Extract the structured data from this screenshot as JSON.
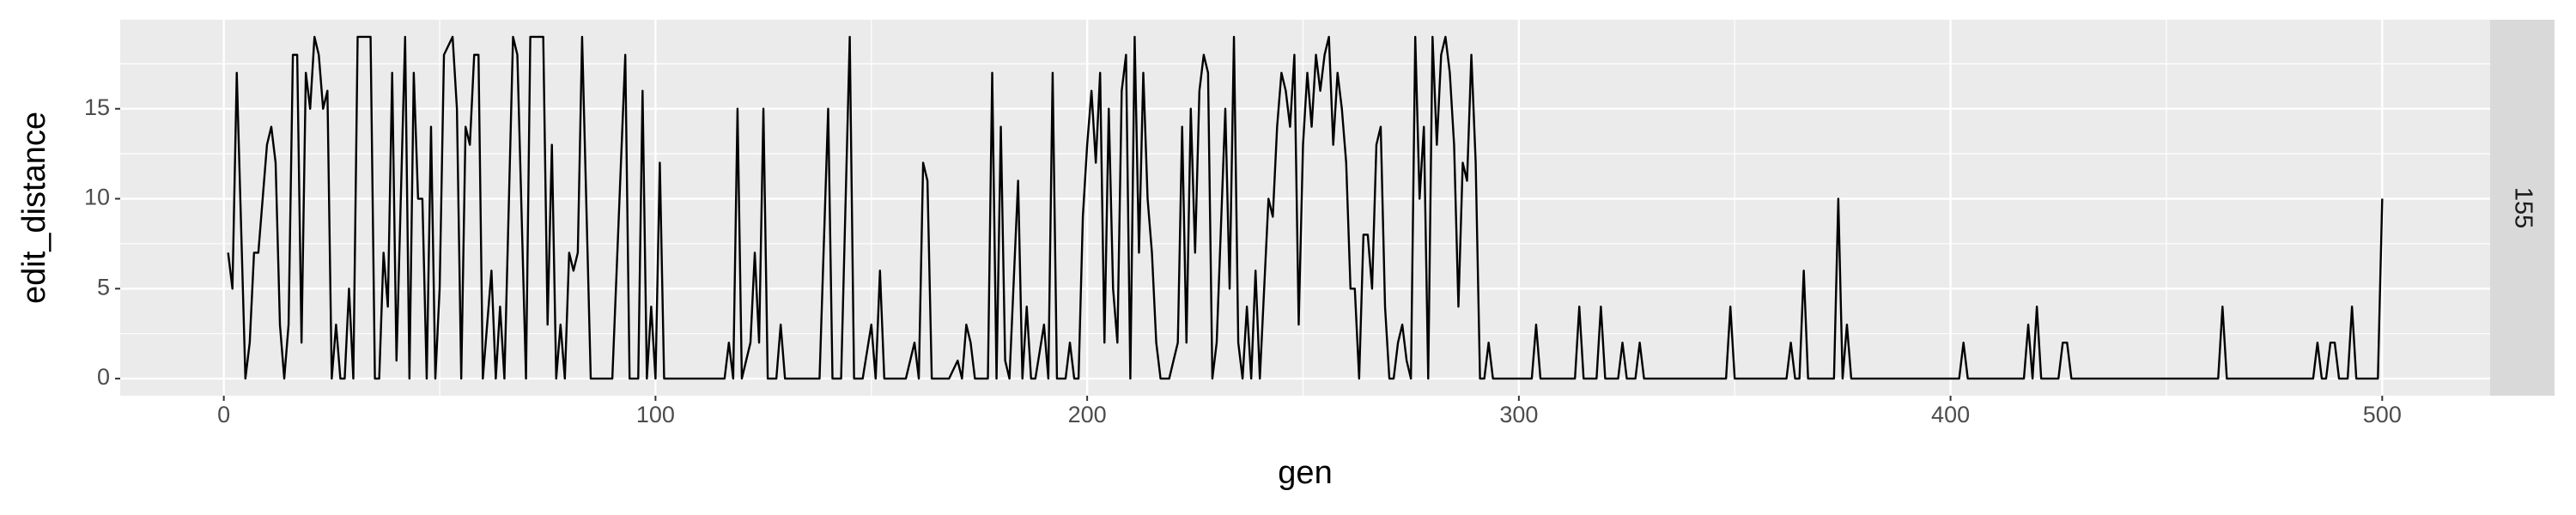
{
  "chart_data": {
    "type": "line",
    "x_label": "gen",
    "y_label": "edit_distance",
    "facet_label": "155",
    "color": "#000000",
    "grid": true,
    "xlim": [
      -24,
      525
    ],
    "ylim": [
      -0.95,
      19.95
    ],
    "xticks": [
      0,
      100,
      200,
      300,
      400,
      500
    ],
    "yticks": [
      0,
      5,
      10,
      15
    ],
    "x": [
      1,
      2,
      3,
      5,
      6,
      7,
      8,
      10,
      11,
      12,
      13,
      14,
      15,
      16,
      17,
      18,
      19,
      20,
      21,
      22,
      23,
      24,
      25,
      26,
      27,
      28,
      29,
      30,
      31,
      34,
      35,
      36,
      37,
      38,
      39,
      40,
      42,
      43,
      44,
      45,
      46,
      47,
      48,
      49,
      50,
      51,
      53,
      54,
      55,
      56,
      57,
      58,
      59,
      60,
      62,
      63,
      64,
      65,
      67,
      68,
      70,
      71,
      74,
      75,
      76,
      77,
      78,
      79,
      80,
      81,
      82,
      83,
      85,
      90,
      93,
      94,
      96,
      97,
      98,
      99,
      100,
      101,
      102,
      116,
      117,
      118,
      119,
      120,
      122,
      123,
      124,
      125,
      126,
      128,
      129,
      130,
      138,
      140,
      141,
      143,
      145,
      146,
      148,
      150,
      151,
      152,
      153,
      158,
      160,
      161,
      162,
      163,
      164,
      168,
      170,
      171,
      172,
      173,
      174,
      177,
      178,
      179,
      180,
      181,
      182,
      184,
      185,
      186,
      187,
      188,
      190,
      191,
      192,
      193,
      195,
      196,
      197,
      198,
      199,
      200,
      201,
      202,
      203,
      204,
      205,
      206,
      207,
      208,
      209,
      210,
      211,
      212,
      213,
      214,
      215,
      216,
      217,
      219,
      221,
      222,
      223,
      224,
      225,
      226,
      227,
      228,
      229,
      230,
      232,
      233,
      234,
      235,
      236,
      237,
      238,
      239,
      240,
      242,
      243,
      244,
      245,
      246,
      247,
      248,
      249,
      250,
      251,
      252,
      253,
      254,
      255,
      256,
      257,
      258,
      259,
      260,
      261,
      262,
      263,
      264,
      265,
      266,
      267,
      268,
      269,
      270,
      271,
      272,
      273,
      274,
      275,
      276,
      277,
      278,
      279,
      280,
      281,
      282,
      283,
      284,
      285,
      286,
      287,
      288,
      289,
      290,
      291,
      292,
      293,
      294,
      295,
      303,
      304,
      305,
      313,
      314,
      315,
      318,
      319,
      320,
      323,
      324,
      325,
      327,
      328,
      329,
      348,
      349,
      350,
      362,
      363,
      364,
      365,
      366,
      367,
      373,
      374,
      375,
      376,
      377,
      402,
      403,
      404,
      417,
      418,
      419,
      420,
      421,
      425,
      426,
      427,
      428,
      462,
      463,
      464,
      484,
      485,
      486,
      487,
      488,
      489,
      490,
      492,
      493,
      494,
      499,
      500
    ],
    "values": [
      7,
      5,
      17,
      0,
      2,
      7,
      7,
      13,
      14,
      12,
      3,
      0,
      3,
      18,
      18,
      2,
      17,
      15,
      19,
      18,
      15,
      16,
      0,
      3,
      0,
      0,
      5,
      0,
      19,
      19,
      0,
      0,
      7,
      4,
      17,
      1,
      19,
      0,
      17,
      10,
      10,
      0,
      14,
      0,
      5,
      18,
      19,
      15,
      0,
      14,
      13,
      18,
      18,
      0,
      6,
      0,
      4,
      0,
      19,
      18,
      0,
      19,
      19,
      3,
      13,
      0,
      3,
      0,
      7,
      6,
      7,
      19,
      0,
      0,
      18,
      0,
      0,
      16,
      0,
      4,
      0,
      12,
      0,
      0,
      2,
      0,
      15,
      0,
      2,
      7,
      2,
      15,
      0,
      0,
      3,
      0,
      0,
      15,
      0,
      0,
      19,
      0,
      0,
      3,
      0,
      6,
      0,
      0,
      2,
      0,
      12,
      11,
      0,
      0,
      1,
      0,
      3,
      2,
      0,
      0,
      17,
      0,
      14,
      1,
      0,
      11,
      0,
      4,
      0,
      0,
      3,
      0,
      17,
      0,
      0,
      2,
      0,
      0,
      9,
      13,
      16,
      12,
      17,
      2,
      15,
      5,
      2,
      16,
      18,
      0,
      19,
      7,
      17,
      10,
      7,
      2,
      0,
      0,
      2,
      14,
      2,
      15,
      7,
      16,
      18,
      17,
      0,
      2,
      15,
      5,
      19,
      2,
      0,
      4,
      0,
      6,
      0,
      10,
      9,
      14,
      17,
      16,
      14,
      18,
      3,
      13,
      17,
      14,
      18,
      16,
      18,
      19,
      13,
      17,
      15,
      12,
      5,
      5,
      0,
      8,
      8,
      5,
      13,
      14,
      4,
      0,
      0,
      2,
      3,
      1,
      0,
      19,
      10,
      14,
      0,
      19,
      13,
      18,
      19,
      17,
      13,
      4,
      12,
      11,
      18,
      12,
      0,
      0,
      2,
      0,
      0,
      0,
      3,
      0,
      0,
      4,
      0,
      0,
      4,
      0,
      0,
      2,
      0,
      0,
      2,
      0,
      0,
      4,
      0,
      0,
      2,
      0,
      0,
      6,
      0,
      0,
      10,
      0,
      3,
      0,
      0,
      2,
      0,
      0,
      3,
      0,
      4,
      0,
      0,
      2,
      2,
      0,
      0,
      4,
      0,
      0,
      2,
      0,
      0,
      2,
      2,
      0,
      0,
      4,
      0,
      0,
      10
    ]
  }
}
